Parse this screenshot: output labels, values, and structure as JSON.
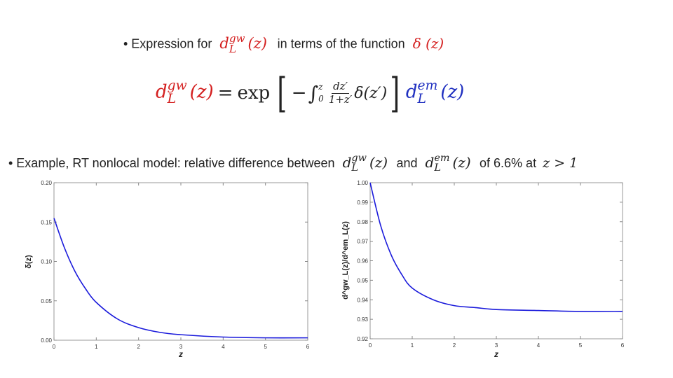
{
  "bullets": {
    "line1": {
      "prefix": "• Expression for",
      "middle": "in terms of the function",
      "expr1_main": "d",
      "expr1_sup": "gw",
      "expr1_sub": "L",
      "expr1_arg": "(z)",
      "expr2": "δ (z)"
    },
    "line2": {
      "prefix": "• Example, RT nonlocal model: relative difference between",
      "and_word": "and",
      "tail": "of 6.6% at",
      "expr_a_main": "d",
      "expr_a_sup": "gw",
      "expr_a_sub": "L",
      "expr_a_arg": "(z)",
      "expr_b_main": "d",
      "expr_b_sup": "em",
      "expr_b_sub": "L",
      "expr_b_arg": "(z)",
      "condition": "z > 1"
    }
  },
  "equation": {
    "lhs_main": "d",
    "lhs_sup": "gw",
    "lhs_sub": "L",
    "lhs_arg": "(z)",
    "equals": "=",
    "func": "exp",
    "bracket_open": "[",
    "bracket_close": "]",
    "minus": "−",
    "integral": "∫",
    "int_upper": "z",
    "int_lower": "0",
    "frac_num": "dz′",
    "frac_den": "1+z′",
    "integrand": "δ(z′)",
    "rhs_main": "d",
    "rhs_sup": "em",
    "rhs_sub": "L",
    "rhs_arg": "(z)"
  },
  "colors": {
    "gw": "#d42020",
    "em": "#2030c0",
    "curve": "#1a1adb"
  },
  "chart_data": [
    {
      "type": "line",
      "title": "",
      "xlabel": "z",
      "ylabel": "δ(z)",
      "xlim": [
        0,
        6
      ],
      "ylim": [
        0,
        0.2
      ],
      "xticks": [
        "0",
        "1",
        "2",
        "3",
        "4",
        "5",
        "6"
      ],
      "yticks": [
        "0.00",
        "0.05",
        "0.10",
        "0.15",
        "0.20"
      ],
      "grid": false,
      "x": [
        0,
        0.25,
        0.5,
        0.75,
        1,
        1.5,
        2,
        2.5,
        3,
        4,
        5,
        6
      ],
      "y": [
        0.155,
        0.117,
        0.087,
        0.065,
        0.048,
        0.027,
        0.016,
        0.01,
        0.007,
        0.004,
        0.003,
        0.003
      ]
    },
    {
      "type": "line",
      "title": "",
      "xlabel": "z",
      "ylabel": "d^gw_L(z)/d^em_L(z)",
      "xlim": [
        0,
        6
      ],
      "ylim": [
        0.92,
        1.0
      ],
      "xticks": [
        "0",
        "1",
        "2",
        "3",
        "4",
        "5",
        "6"
      ],
      "yticks": [
        "0.92",
        "0.93",
        "0.94",
        "0.95",
        "0.96",
        "0.97",
        "0.98",
        "0.99",
        "1.00"
      ],
      "grid": false,
      "x": [
        0,
        0.25,
        0.5,
        0.75,
        1,
        1.5,
        2,
        2.5,
        3,
        4,
        5,
        6
      ],
      "y": [
        1.0,
        0.978,
        0.963,
        0.953,
        0.946,
        0.94,
        0.937,
        0.936,
        0.935,
        0.9345,
        0.934,
        0.934
      ]
    }
  ]
}
